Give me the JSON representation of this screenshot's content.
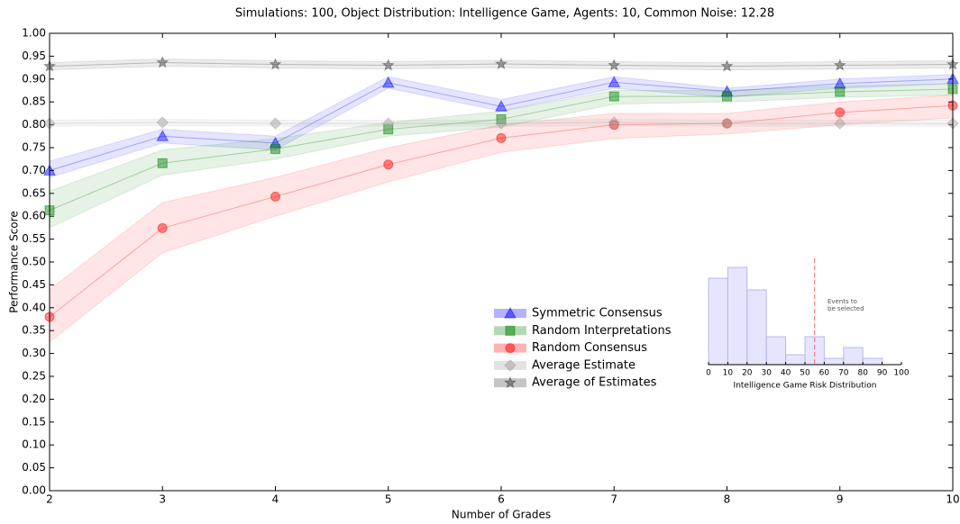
{
  "chart_data": [
    {
      "type": "line",
      "title": "Simulations: 100, Object Distribution: Intelligence Game, Agents: 10, Common Noise: 12.28",
      "xlabel": "Number of Grades",
      "ylabel": "Performance Score",
      "x": [
        2,
        3,
        4,
        5,
        6,
        7,
        8,
        9,
        10
      ],
      "xlim": [
        2,
        10
      ],
      "xticks": [
        2,
        3,
        4,
        5,
        6,
        7,
        8,
        9,
        10
      ],
      "ylim": [
        0,
        1
      ],
      "yticks": [
        {
          "value": 0,
          "label": "0.00"
        },
        {
          "value": 0.05,
          "label": "0.05"
        },
        {
          "value": 0.1,
          "label": "0.10"
        },
        {
          "value": 0.15,
          "label": "0.15"
        },
        {
          "value": 0.2,
          "label": "0.20"
        },
        {
          "value": 0.25,
          "label": "0.25"
        },
        {
          "value": 0.3,
          "label": "0.30"
        },
        {
          "value": 0.35,
          "label": "0.35"
        },
        {
          "value": 0.4,
          "label": "0.40"
        },
        {
          "value": 0.45,
          "label": "0.45"
        },
        {
          "value": 0.5,
          "label": "0.50"
        },
        {
          "value": 0.55,
          "label": "0.55"
        },
        {
          "value": 0.6,
          "label": "0.60"
        },
        {
          "value": 0.65,
          "label": "0.65"
        },
        {
          "value": 0.7,
          "label": "0.70"
        },
        {
          "value": 0.75,
          "label": "0.75"
        },
        {
          "value": 0.8,
          "label": "0.80"
        },
        {
          "value": 0.85,
          "label": "0.85"
        },
        {
          "value": 0.9,
          "label": "0.90"
        },
        {
          "value": 0.95,
          "label": "0.95"
        },
        {
          "value": 1,
          "label": "1.00"
        }
      ],
      "series": [
        {
          "name": "Symmetric Consensus",
          "color": "#0000ff",
          "marker": "triangle",
          "values": [
            0.7,
            0.775,
            0.76,
            0.892,
            0.84,
            0.893,
            0.873,
            0.89,
            0.9
          ],
          "lower": [
            0.685,
            0.76,
            0.745,
            0.88,
            0.83,
            0.88,
            0.86,
            0.88,
            0.89
          ],
          "upper": [
            0.72,
            0.79,
            0.775,
            0.905,
            0.855,
            0.905,
            0.88,
            0.9,
            0.91
          ]
        },
        {
          "name": "Random Interpretations",
          "color": "#008000",
          "marker": "square",
          "values": [
            0.613,
            0.716,
            0.747,
            0.79,
            0.812,
            0.862,
            0.862,
            0.872,
            0.878
          ],
          "lower": [
            0.575,
            0.69,
            0.725,
            0.775,
            0.795,
            0.845,
            0.85,
            0.86,
            0.865
          ],
          "upper": [
            0.655,
            0.745,
            0.77,
            0.805,
            0.83,
            0.875,
            0.875,
            0.885,
            0.89
          ]
        },
        {
          "name": "Random Consensus",
          "color": "#ff0000",
          "marker": "circle",
          "values": [
            0.38,
            0.574,
            0.643,
            0.713,
            0.771,
            0.8,
            0.803,
            0.827,
            0.842
          ],
          "lower": [
            0.325,
            0.52,
            0.6,
            0.675,
            0.74,
            0.77,
            0.78,
            0.8,
            0.815
          ],
          "upper": [
            0.44,
            0.63,
            0.685,
            0.75,
            0.8,
            0.825,
            0.825,
            0.85,
            0.865
          ]
        },
        {
          "name": "Average Estimate",
          "color": "#a0a0a0",
          "marker": "diamond",
          "values": [
            0.803,
            0.805,
            0.803,
            0.803,
            0.803,
            0.805,
            0.803,
            0.803,
            0.803
          ],
          "lower": [
            0.797,
            0.798,
            0.797,
            0.797,
            0.797,
            0.798,
            0.797,
            0.797,
            0.797
          ],
          "upper": [
            0.81,
            0.812,
            0.81,
            0.81,
            0.81,
            0.812,
            0.81,
            0.81,
            0.81
          ]
        },
        {
          "name": "Average of Estimates",
          "color": "#404040",
          "marker": "star",
          "values": [
            0.928,
            0.936,
            0.932,
            0.93,
            0.933,
            0.93,
            0.928,
            0.93,
            0.932
          ],
          "lower": [
            0.92,
            0.928,
            0.924,
            0.922,
            0.925,
            0.922,
            0.92,
            0.922,
            0.924
          ],
          "upper": [
            0.936,
            0.944,
            0.94,
            0.938,
            0.941,
            0.938,
            0.936,
            0.938,
            0.94
          ]
        }
      ]
    },
    {
      "type": "histogram",
      "xlabel": "Intelligence Game Risk Distribution",
      "bins": [
        0,
        10,
        20,
        30,
        40,
        50,
        60,
        70,
        80,
        90
      ],
      "values": [
        0.096,
        0.108,
        0.083,
        0.031,
        0.011,
        0.031,
        0.007,
        0.019,
        0.007
      ],
      "color": "#ccccff",
      "xlim": [
        0,
        100
      ],
      "xticks": [
        0,
        10,
        20,
        30,
        40,
        50,
        60,
        70,
        80,
        90,
        100
      ],
      "ylim": [
        0,
        0.12
      ],
      "vline": 55,
      "vline_color": "#ff6666",
      "annotation": [
        "Events to",
        "be selected"
      ]
    }
  ]
}
